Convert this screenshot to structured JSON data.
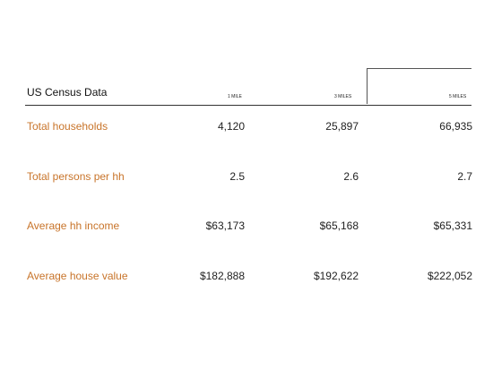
{
  "title": "US Census Data",
  "columns": [
    "1 MILE",
    "3 MILES",
    "5 MILES"
  ],
  "rows": [
    {
      "label": "Total households",
      "values": [
        "4,120",
        "25,897",
        "66,935"
      ]
    },
    {
      "label": "Total persons per hh",
      "values": [
        "2.5",
        "2.6",
        "2.7"
      ]
    },
    {
      "label": "Average hh income",
      "values": [
        "$63,173",
        "$65,168",
        "$65,331"
      ]
    },
    {
      "label": "Average house value",
      "values": [
        "$182,888",
        "$192,622",
        "$222,052"
      ]
    }
  ]
}
